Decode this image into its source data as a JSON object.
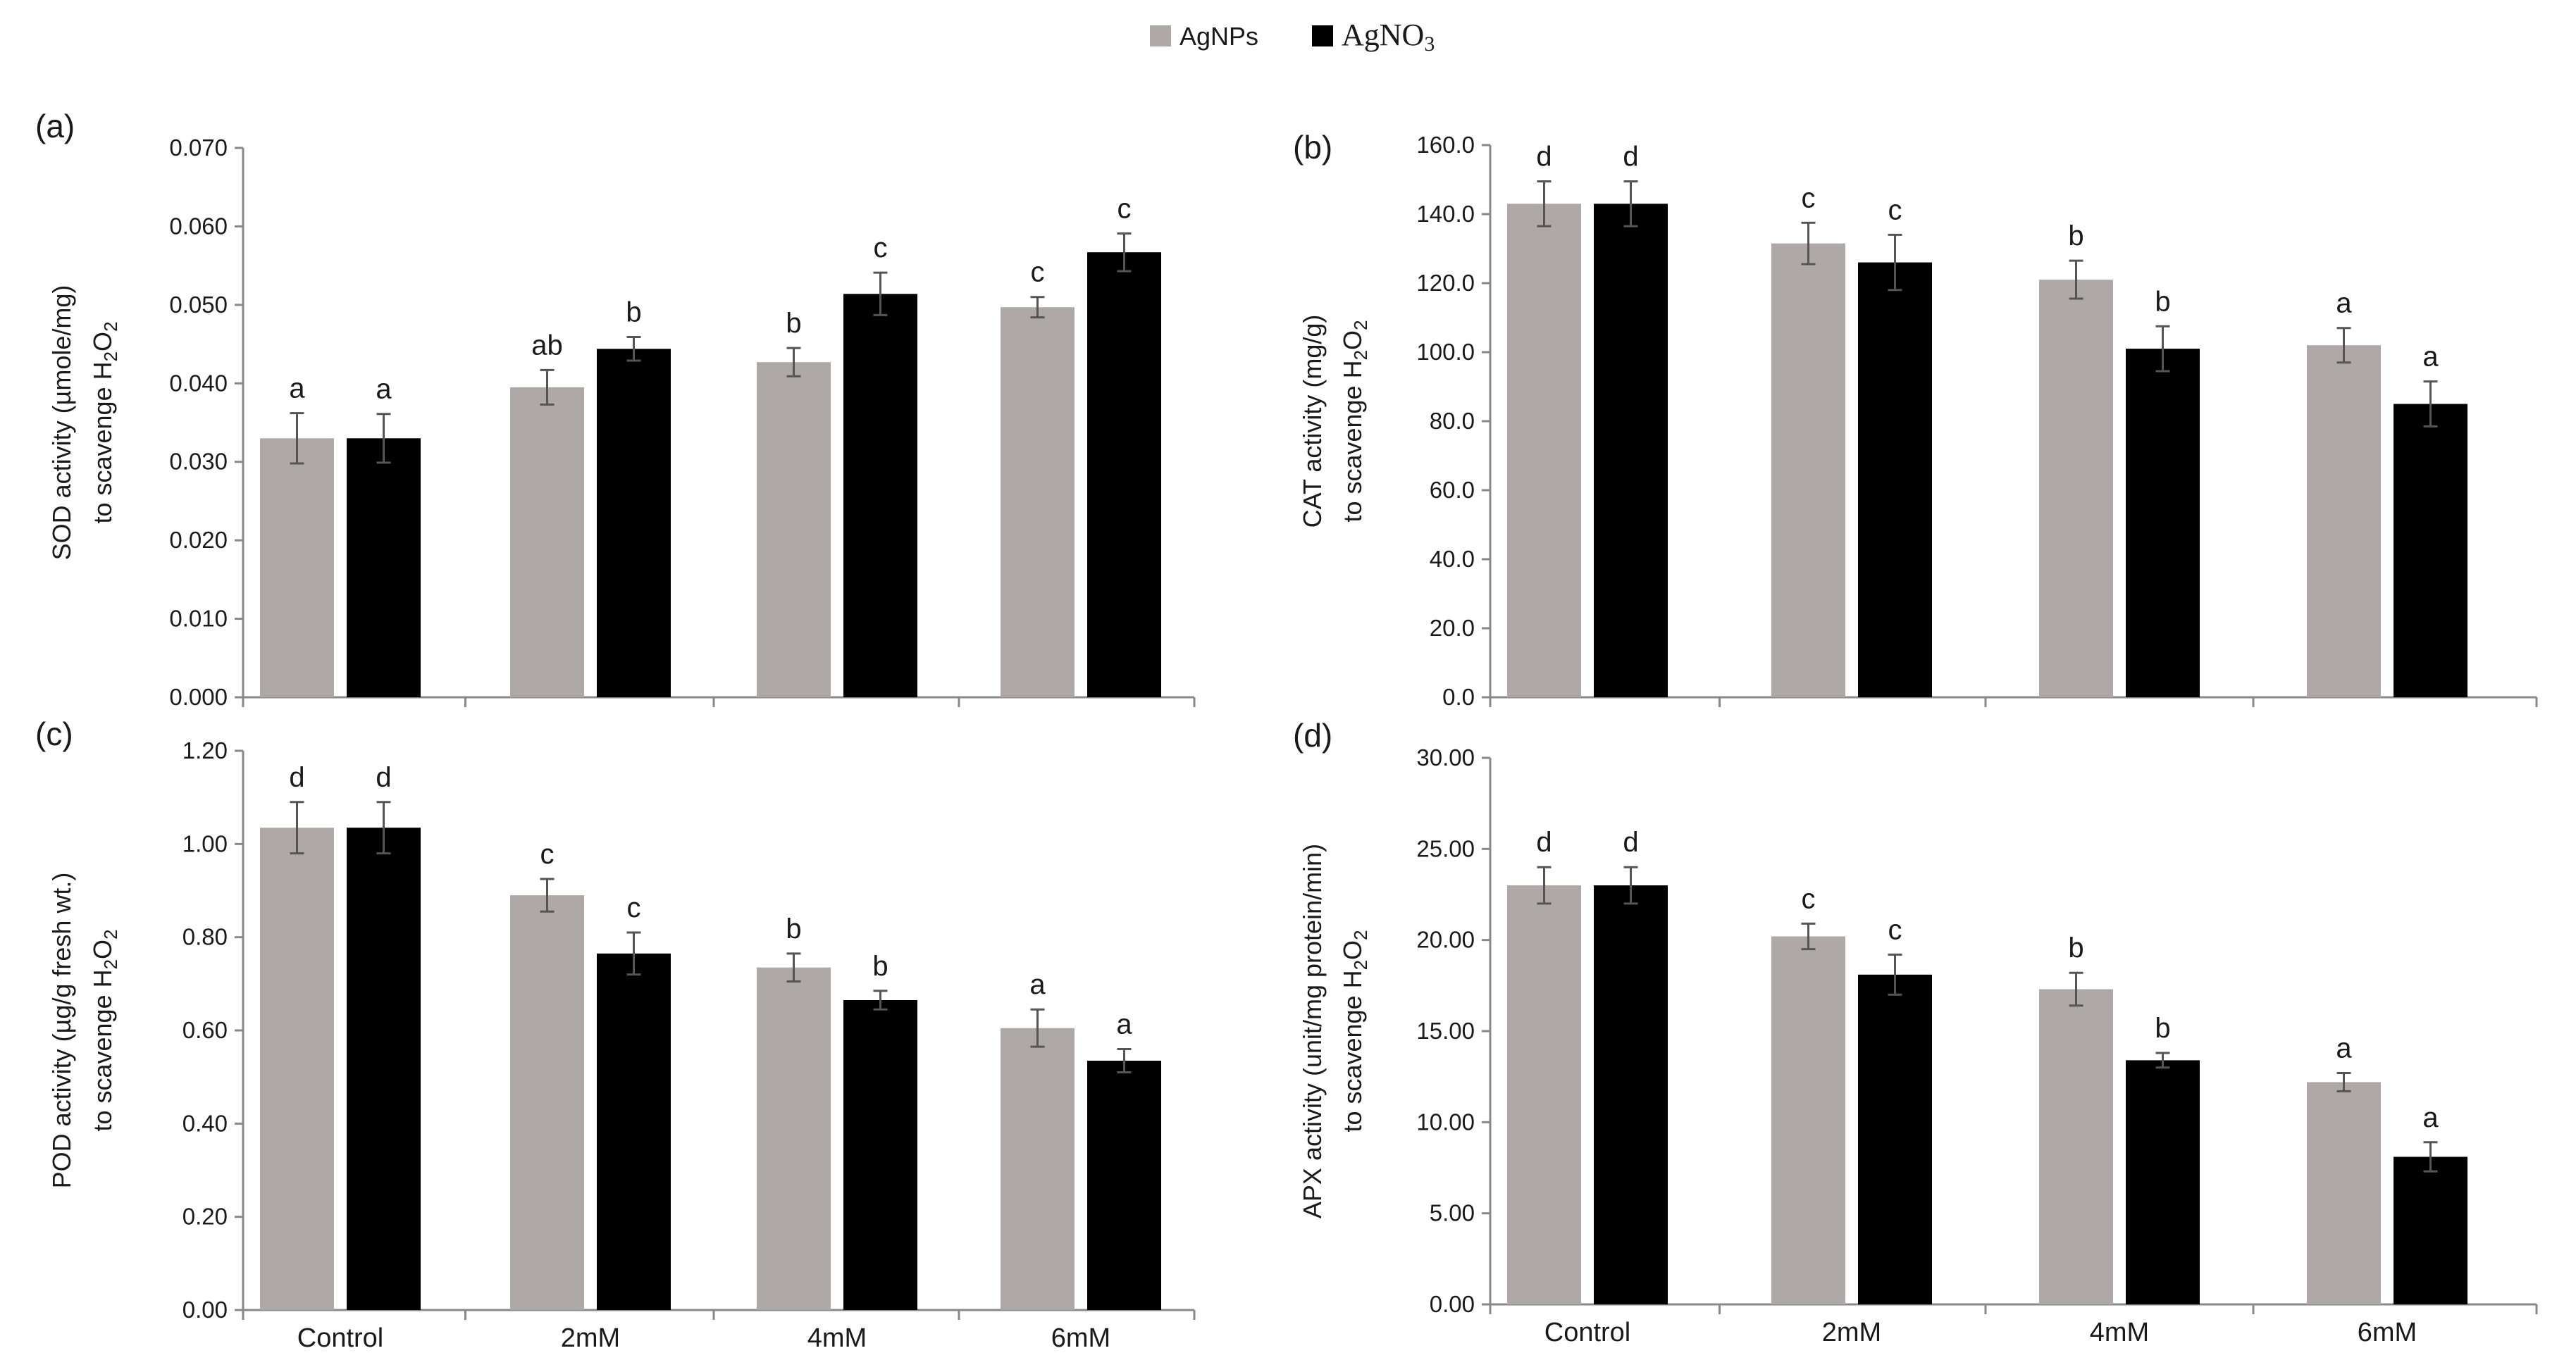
{
  "legend": [
    {
      "label": "AgNPs",
      "sub": "",
      "color": "#aea9a6"
    },
    {
      "label": "AgNO",
      "sub": "3",
      "color": "#000000"
    }
  ],
  "colors": {
    "agnps": "#aea9a6",
    "agno3": "#000000",
    "axis": "#888888",
    "errorbar": "#555555"
  },
  "chart_data": [
    {
      "panel": "(a)",
      "type": "bar",
      "categories": [
        "Control",
        "2mM",
        "4mM",
        "6mM"
      ],
      "show_category_labels": false,
      "ylabel_line1": "SOD activity (µmole/mg)",
      "ylabel_line2_prefix": "to scavenge H",
      "ylim": [
        0,
        0.07
      ],
      "ytick_values": [
        0,
        0.01,
        0.02,
        0.03,
        0.04,
        0.05,
        0.06,
        0.07
      ],
      "ytick_labels": [
        "0.000",
        "0.010",
        "0.020",
        "0.030",
        "0.040",
        "0.050",
        "0.060",
        "0.070"
      ],
      "series": [
        {
          "name": "AgNPs",
          "values": [
            0.033,
            0.0395,
            0.0427,
            0.0497
          ],
          "errors": [
            0.0032,
            0.0022,
            0.0018,
            0.0013
          ],
          "letters": [
            "a",
            "ab",
            "b",
            "c"
          ]
        },
        {
          "name": "AgNO3",
          "values": [
            0.033,
            0.0444,
            0.0514,
            0.0567
          ],
          "errors": [
            0.0031,
            0.0015,
            0.0027,
            0.0024
          ],
          "letters": [
            "a",
            "b",
            "c",
            "c"
          ]
        }
      ]
    },
    {
      "panel": "(b)",
      "type": "bar",
      "categories": [
        "Control",
        "2mM",
        "4mM",
        "6mM"
      ],
      "show_category_labels": false,
      "ylabel_line1": "CAT activity (mg/g)",
      "ylabel_line2_prefix": "to scavenge H",
      "ylim": [
        0,
        160
      ],
      "ytick_values": [
        0,
        20,
        40,
        60,
        80,
        100,
        120,
        140,
        160
      ],
      "ytick_labels": [
        "0.0",
        "20.0",
        "40.0",
        "60.0",
        "80.0",
        "100.0",
        "120.0",
        "140.0",
        "160.0"
      ],
      "series": [
        {
          "name": "AgNPs",
          "values": [
            143,
            131.5,
            121,
            102
          ],
          "errors": [
            6.5,
            6,
            5.5,
            5
          ],
          "letters": [
            "d",
            "c",
            "b",
            "a"
          ]
        },
        {
          "name": "AgNO3",
          "values": [
            143,
            126,
            101,
            85
          ],
          "errors": [
            6.5,
            8,
            6.5,
            6.5
          ],
          "letters": [
            "d",
            "c",
            "b",
            "a"
          ]
        }
      ]
    },
    {
      "panel": "(c)",
      "type": "bar",
      "categories": [
        "Control",
        "2mM",
        "4mM",
        "6mM"
      ],
      "show_category_labels": true,
      "ylabel_line1": "POD activity (µg/g fresh wt.)",
      "ylabel_line2_prefix": "to scavenge H",
      "ylim": [
        0,
        1.2
      ],
      "ytick_values": [
        0,
        0.2,
        0.4,
        0.6,
        0.8,
        1.0,
        1.2
      ],
      "ytick_labels": [
        "0.00",
        "0.20",
        "0.40",
        "0.60",
        "0.80",
        "1.00",
        "1.20"
      ],
      "series": [
        {
          "name": "AgNPs",
          "values": [
            1.035,
            0.89,
            0.735,
            0.605
          ],
          "errors": [
            0.055,
            0.035,
            0.03,
            0.04
          ],
          "letters": [
            "d",
            "c",
            "b",
            "a"
          ]
        },
        {
          "name": "AgNO3",
          "values": [
            1.035,
            0.765,
            0.665,
            0.535
          ],
          "errors": [
            0.055,
            0.045,
            0.02,
            0.025
          ],
          "letters": [
            "d",
            "c",
            "b",
            "a"
          ]
        }
      ]
    },
    {
      "panel": "(d)",
      "type": "bar",
      "categories": [
        "Control",
        "2mM",
        "4mM",
        "6mM"
      ],
      "show_category_labels": true,
      "ylabel_line1": "APX activity (unit/mg protein/min)",
      "ylabel_line2_prefix": "to scavenge  H",
      "ylim": [
        0,
        30
      ],
      "ytick_values": [
        0,
        5,
        10,
        15,
        20,
        25,
        30
      ],
      "ytick_labels": [
        "0.00",
        "5.00",
        "10.00",
        "15.00",
        "20.00",
        "25.00",
        "30.00"
      ],
      "series": [
        {
          "name": "AgNPs",
          "values": [
            23,
            20.2,
            17.3,
            12.2
          ],
          "errors": [
            1.0,
            0.7,
            0.9,
            0.5
          ],
          "letters": [
            "d",
            "c",
            "b",
            "a"
          ]
        },
        {
          "name": "AgNO3",
          "values": [
            23,
            18.1,
            13.4,
            8.1
          ],
          "errors": [
            1.0,
            1.1,
            0.4,
            0.8
          ],
          "letters": [
            "d",
            "c",
            "b",
            "a"
          ]
        }
      ]
    }
  ]
}
